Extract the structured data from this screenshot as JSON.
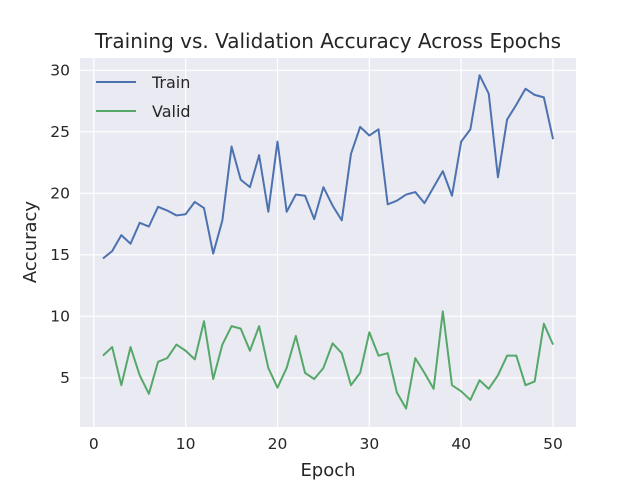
{
  "chart_data": {
    "type": "line",
    "title": "Training vs. Validation Accuracy Across Epochs",
    "xlabel": "Epoch",
    "ylabel": "Accuracy",
    "xlim": [
      -1.5,
      52.5
    ],
    "ylim": [
      1,
      31
    ],
    "xticks": [
      0,
      10,
      20,
      30,
      40,
      50
    ],
    "yticks": [
      5,
      10,
      15,
      20,
      25,
      30
    ],
    "grid": true,
    "legend": "top-left",
    "x": [
      1,
      2,
      3,
      4,
      5,
      6,
      7,
      8,
      9,
      10,
      11,
      12,
      13,
      14,
      15,
      16,
      17,
      18,
      19,
      20,
      21,
      22,
      23,
      24,
      25,
      26,
      27,
      28,
      29,
      30,
      31,
      32,
      33,
      34,
      35,
      36,
      37,
      38,
      39,
      40,
      41,
      42,
      43,
      44,
      45,
      46,
      47,
      48,
      49,
      50
    ],
    "series": [
      {
        "name": "Train",
        "color": "#4c72b0",
        "values": [
          14.7,
          15.3,
          16.6,
          15.9,
          17.6,
          17.3,
          18.9,
          18.6,
          18.2,
          18.3,
          19.3,
          18.8,
          15.1,
          17.8,
          23.8,
          21.1,
          20.5,
          23.1,
          18.5,
          24.2,
          18.5,
          19.9,
          19.8,
          17.9,
          20.5,
          19.0,
          17.8,
          23.2,
          25.4,
          24.7,
          25.2,
          19.1,
          19.4,
          19.9,
          20.1,
          19.2,
          20.5,
          21.8,
          19.8,
          24.2,
          25.2,
          29.6,
          28.1,
          21.3,
          26.0,
          27.2,
          28.5,
          28.0,
          27.8,
          24.4
        ]
      },
      {
        "name": "Valid",
        "color": "#55a868",
        "values": [
          6.8,
          7.5,
          4.4,
          7.5,
          5.2,
          3.7,
          6.3,
          6.6,
          7.7,
          7.2,
          6.5,
          9.6,
          4.9,
          7.7,
          9.2,
          9.0,
          7.2,
          9.2,
          5.8,
          4.2,
          5.8,
          8.4,
          5.4,
          4.9,
          5.8,
          7.8,
          7.0,
          4.4,
          5.4,
          8.7,
          6.8,
          7.0,
          3.8,
          2.5,
          6.6,
          5.4,
          4.1,
          10.4,
          4.4,
          3.9,
          3.2,
          4.8,
          4.1,
          5.2,
          6.8,
          6.8,
          4.4,
          4.7,
          9.4,
          7.7
        ]
      }
    ]
  }
}
